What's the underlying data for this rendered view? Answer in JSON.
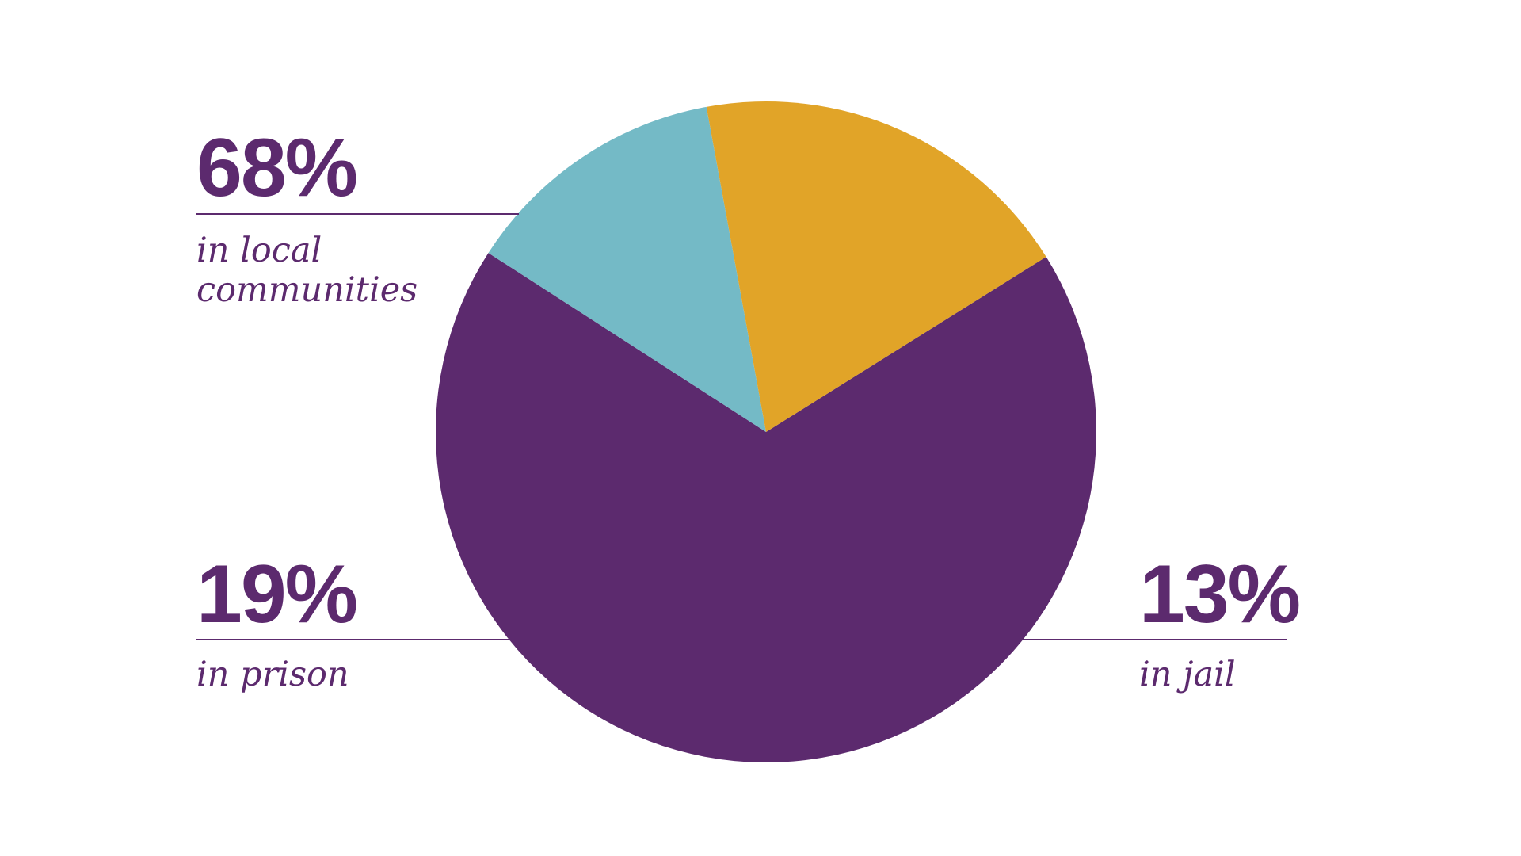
{
  "chart_data": {
    "type": "pie",
    "title": "",
    "slices": [
      {
        "label": "in local communities",
        "label_lines": [
          "in local",
          "communities"
        ],
        "value": 68,
        "value_text": "68%",
        "color": "#5c2a6e"
      },
      {
        "label": "in jail",
        "label_lines": [
          "in jail"
        ],
        "value": 13,
        "value_text": "13%",
        "color": "#74bac6"
      },
      {
        "label": "in prison",
        "label_lines": [
          "in prison"
        ],
        "value": 19,
        "value_text": "19%",
        "color": "#e1a428"
      }
    ],
    "text_color": "#5c2a6e",
    "leader_line_color": "#5c2a6e"
  }
}
